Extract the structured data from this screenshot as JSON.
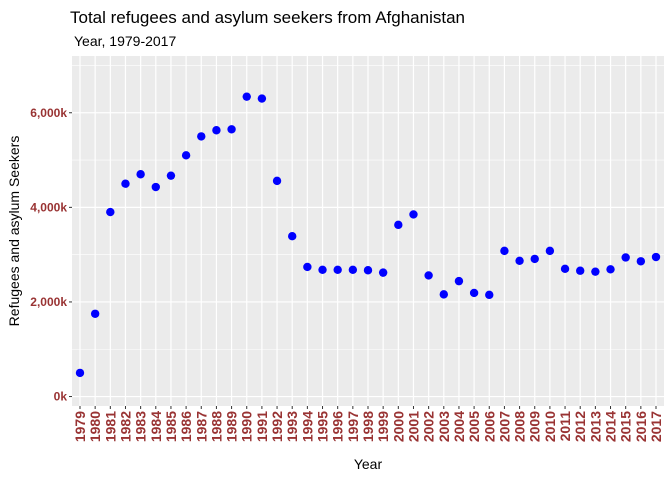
{
  "chart_data": {
    "type": "scatter",
    "title": "Total refugees and asylum seekers from Afghanistan",
    "subtitle": "Year, 1979-2017",
    "xlabel": "Year",
    "ylabel": "Refugees and asylum Seekers",
    "ylim": [
      -200000,
      7200000
    ],
    "y_ticks": [
      0,
      2000000,
      4000000,
      6000000
    ],
    "y_tick_labels": [
      "0k",
      "2,000k",
      "4,000k",
      "6,000k"
    ],
    "grid": true,
    "legend": "none",
    "colors": {
      "point": "#0000FF",
      "panel": "#EBEBEB",
      "grid": "#FFFFFF",
      "tick_label": "#993333"
    },
    "x": [
      "1979",
      "1980",
      "1981",
      "1982",
      "1983",
      "1984",
      "1985",
      "1986",
      "1987",
      "1988",
      "1989",
      "1990",
      "1991",
      "1992",
      "1993",
      "1994",
      "1995",
      "1996",
      "1997",
      "1998",
      "1999",
      "2000",
      "2001",
      "2002",
      "2003",
      "2004",
      "2005",
      "2006",
      "2007",
      "2008",
      "2009",
      "2010",
      "2011",
      "2012",
      "2013",
      "2014",
      "2015",
      "2016",
      "2017"
    ],
    "values": [
      500000,
      1750000,
      3900000,
      4500000,
      4700000,
      4430000,
      4670000,
      5100000,
      5500000,
      5630000,
      5650000,
      6340000,
      6300000,
      4560000,
      3390000,
      2740000,
      2680000,
      2680000,
      2680000,
      2670000,
      2620000,
      3630000,
      3850000,
      2560000,
      2160000,
      2440000,
      2190000,
      2150000,
      3080000,
      2870000,
      2910000,
      3080000,
      2700000,
      2660000,
      2640000,
      2690000,
      2940000,
      2860000,
      2950000
    ]
  }
}
